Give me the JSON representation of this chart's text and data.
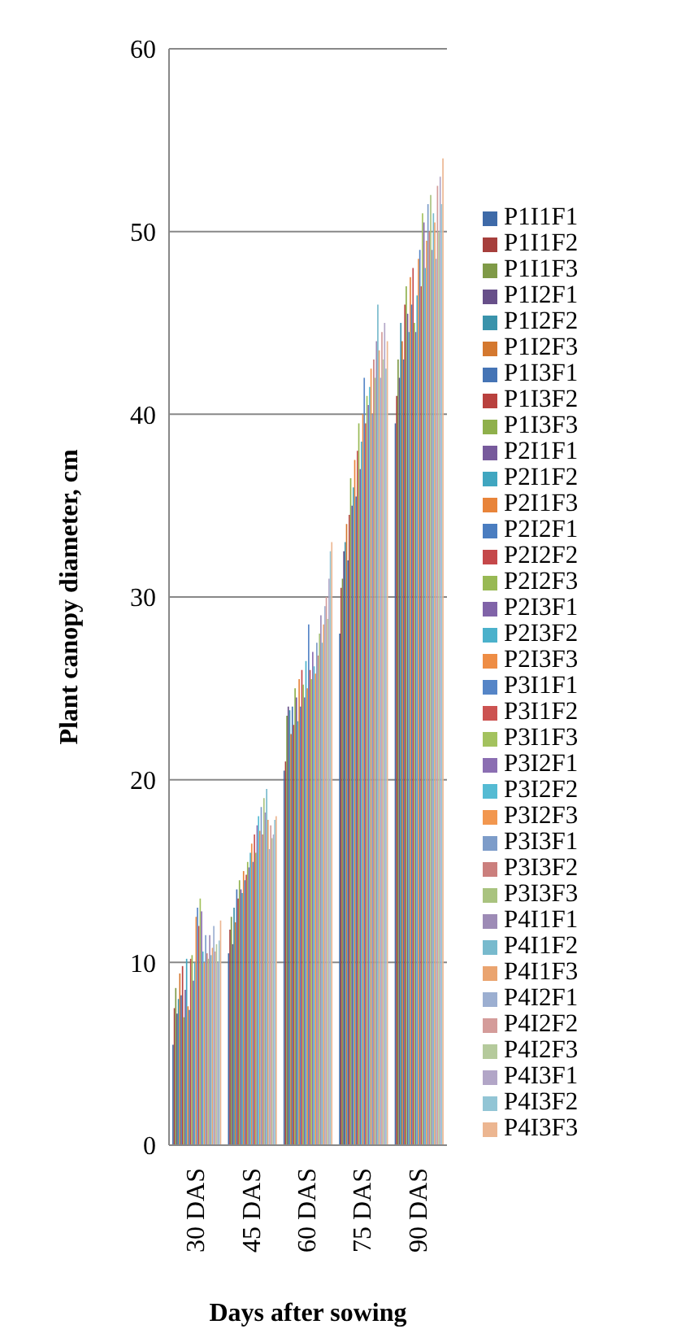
{
  "chart_data": {
    "type": "bar",
    "xlabel": "Days after sowing",
    "ylabel": "Plant canopy diameter, cm",
    "categories": [
      "30 DAS",
      "45 DAS",
      "60 DAS",
      "75 DAS",
      "90 DAS"
    ],
    "ylim": [
      0,
      60
    ],
    "yticks": [
      0,
      10,
      20,
      30,
      40,
      50,
      60
    ],
    "grid": "y",
    "legend": "right",
    "series": [
      {
        "name": "P1I1F1",
        "color": "#3e6aa8",
        "values": [
          5.5,
          10.5,
          20.5,
          28.0,
          39.5
        ]
      },
      {
        "name": "P1I1F2",
        "color": "#a63f3c",
        "values": [
          7.5,
          11.8,
          21.0,
          30.5,
          41.0
        ]
      },
      {
        "name": "P1I1F3",
        "color": "#7f9a47",
        "values": [
          8.6,
          12.5,
          23.5,
          31.0,
          43.0
        ]
      },
      {
        "name": "P1I2F1",
        "color": "#674f89",
        "values": [
          7.2,
          11.0,
          24.0,
          32.5,
          42.0
        ]
      },
      {
        "name": "P1I2F2",
        "color": "#3a93ab",
        "values": [
          8.0,
          13.0,
          23.8,
          33.0,
          45.0
        ]
      },
      {
        "name": "P1I2F3",
        "color": "#d4782f",
        "values": [
          9.4,
          12.2,
          22.5,
          34.0,
          44.0
        ]
      },
      {
        "name": "P1I3F1",
        "color": "#4574b5",
        "values": [
          8.2,
          14.0,
          24.0,
          32.0,
          43.0
        ]
      },
      {
        "name": "P1I3F2",
        "color": "#b9413e",
        "values": [
          9.8,
          13.5,
          23.0,
          34.5,
          46.0
        ]
      },
      {
        "name": "P1I3F3",
        "color": "#8fb04b",
        "values": [
          7.0,
          14.5,
          25.0,
          36.5,
          47.0
        ]
      },
      {
        "name": "P2I1F1",
        "color": "#775a9c",
        "values": [
          8.5,
          14.0,
          24.5,
          35.0,
          45.5
        ]
      },
      {
        "name": "P2I1F2",
        "color": "#40a6c0",
        "values": [
          10.2,
          13.8,
          23.2,
          36.0,
          44.5
        ]
      },
      {
        "name": "P2I1F3",
        "color": "#e8843a",
        "values": [
          7.6,
          15.0,
          25.5,
          37.5,
          47.5
        ]
      },
      {
        "name": "P2I2F1",
        "color": "#4a7dc0",
        "values": [
          7.4,
          14.5,
          24.0,
          35.5,
          46.0
        ]
      },
      {
        "name": "P2I2F2",
        "color": "#c5484a",
        "values": [
          10.2,
          14.8,
          26.0,
          38.0,
          48.0
        ]
      },
      {
        "name": "P2I2F3",
        "color": "#98b954",
        "values": [
          10.4,
          15.5,
          25.2,
          39.5,
          45.0
        ]
      },
      {
        "name": "P2I3F1",
        "color": "#8063a8",
        "values": [
          9.0,
          15.2,
          24.5,
          37.0,
          44.5
        ]
      },
      {
        "name": "P2I3F2",
        "color": "#4bb1cb",
        "values": [
          10.0,
          16.0,
          26.5,
          38.5,
          46.5
        ]
      },
      {
        "name": "P2I3F3",
        "color": "#ee8d45",
        "values": [
          12.5,
          16.5,
          25.0,
          40.0,
          48.5
        ]
      },
      {
        "name": "P3I1F1",
        "color": "#5585c7",
        "values": [
          13.0,
          15.5,
          28.5,
          42.0,
          49.0
        ]
      },
      {
        "name": "P3I1F2",
        "color": "#cc5351",
        "values": [
          12.0,
          17.0,
          26.0,
          39.5,
          47.0
        ]
      },
      {
        "name": "P3I1F3",
        "color": "#a3c25e",
        "values": [
          13.5,
          16.0,
          25.5,
          41.0,
          51.0
        ]
      },
      {
        "name": "P3I2F1",
        "color": "#8b6eb2",
        "values": [
          12.8,
          17.5,
          27.0,
          40.5,
          50.5
        ]
      },
      {
        "name": "P3I2F2",
        "color": "#55bbd3",
        "values": [
          10.6,
          18.0,
          26.2,
          41.5,
          48.0
        ]
      },
      {
        "name": "P3I2F3",
        "color": "#f2974f",
        "values": [
          10.0,
          17.2,
          25.8,
          42.5,
          49.5
        ]
      },
      {
        "name": "P3I3F1",
        "color": "#7d9cc9",
        "values": [
          11.5,
          18.5,
          27.5,
          40.0,
          51.5
        ]
      },
      {
        "name": "P3I3F2",
        "color": "#cb7f7d",
        "values": [
          10.5,
          17.0,
          26.8,
          43.0,
          50.0
        ]
      },
      {
        "name": "P3I3F3",
        "color": "#a9c37f",
        "values": [
          10.2,
          19.0,
          28.0,
          42.0,
          52.0
        ]
      },
      {
        "name": "P4I1F1",
        "color": "#9d8bb6",
        "values": [
          11.5,
          18.2,
          29.0,
          44.0,
          49.0
        ]
      },
      {
        "name": "P4I1F2",
        "color": "#78bacd",
        "values": [
          10.4,
          19.5,
          27.5,
          46.0,
          51.0
        ]
      },
      {
        "name": "P4I1F3",
        "color": "#eaa46f",
        "values": [
          10.8,
          17.8,
          28.5,
          43.5,
          50.5
        ]
      },
      {
        "name": "P4I2F1",
        "color": "#9cafd1",
        "values": [
          12.0,
          16.2,
          29.5,
          42.0,
          48.5
        ]
      },
      {
        "name": "P4I2F2",
        "color": "#d49c9a",
        "values": [
          10.6,
          17.5,
          30.0,
          44.5,
          52.5
        ]
      },
      {
        "name": "P4I2F3",
        "color": "#b5ca9c",
        "values": [
          11.0,
          16.8,
          28.8,
          43.0,
          50.0
        ]
      },
      {
        "name": "P4I3F1",
        "color": "#b2a6c7",
        "values": [
          10.0,
          17.0,
          31.0,
          45.0,
          53.0
        ]
      },
      {
        "name": "P4I3F2",
        "color": "#92c5d5",
        "values": [
          11.2,
          17.8,
          32.5,
          42.5,
          51.5
        ]
      },
      {
        "name": "P4I3F3",
        "color": "#ecb691",
        "values": [
          12.3,
          18.0,
          33.0,
          44.0,
          54.0
        ]
      }
    ]
  }
}
